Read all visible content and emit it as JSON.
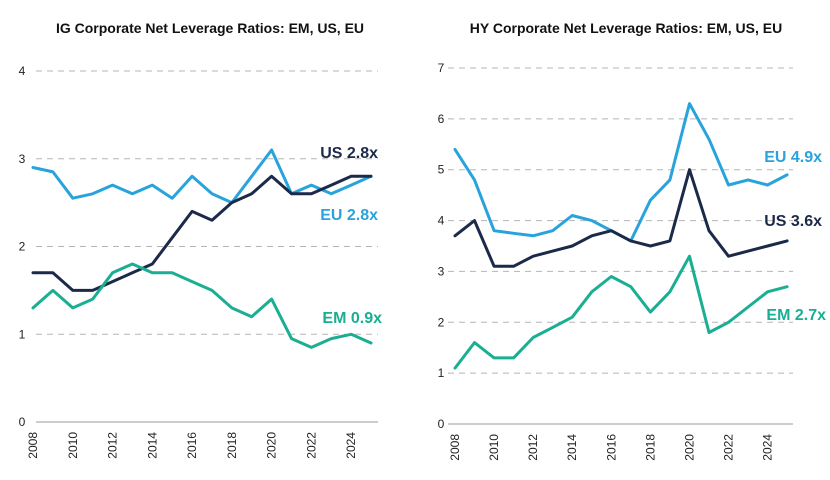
{
  "chart_data": [
    {
      "type": "line",
      "title": "IG Corporate Net Leverage Ratios: EM, US, EU",
      "xlabel": "",
      "ylabel": "",
      "ylim": [
        0,
        4
      ],
      "yticks": [
        0,
        1,
        2,
        3,
        4
      ],
      "xticks": [
        2008,
        2010,
        2012,
        2014,
        2016,
        2018,
        2020,
        2022,
        2024
      ],
      "xlim": [
        2008,
        2025.3
      ],
      "grid": true,
      "series": [
        {
          "name": "EU",
          "label": "EU 2.8x",
          "color": "#29a3dc",
          "x": [
            2008,
            2009,
            2010,
            2011,
            2012,
            2013,
            2014,
            2015,
            2016,
            2017,
            2018,
            2019,
            2020,
            2021,
            2022,
            2023,
            2024,
            2025
          ],
          "values": [
            2.9,
            2.85,
            2.55,
            2.6,
            2.7,
            2.6,
            2.7,
            2.55,
            2.8,
            2.6,
            2.5,
            2.8,
            3.1,
            2.6,
            2.7,
            2.6,
            2.7,
            2.8
          ]
        },
        {
          "name": "US",
          "label": "US 2.8x",
          "color": "#1c2a4a",
          "x": [
            2008,
            2009,
            2010,
            2011,
            2012,
            2013,
            2014,
            2015,
            2016,
            2017,
            2018,
            2019,
            2020,
            2021,
            2022,
            2023,
            2024,
            2025
          ],
          "values": [
            1.7,
            1.7,
            1.5,
            1.5,
            1.6,
            1.7,
            1.8,
            2.1,
            2.4,
            2.3,
            2.5,
            2.6,
            2.8,
            2.6,
            2.6,
            2.7,
            2.8,
            2.8
          ]
        },
        {
          "name": "EM",
          "label": "EM 0.9x",
          "color": "#1aae92",
          "x": [
            2008,
            2009,
            2010,
            2011,
            2012,
            2013,
            2014,
            2015,
            2016,
            2017,
            2018,
            2019,
            2020,
            2021,
            2022,
            2023,
            2024,
            2025
          ],
          "values": [
            1.3,
            1.5,
            1.3,
            1.4,
            1.7,
            1.8,
            1.7,
            1.7,
            1.6,
            1.5,
            1.3,
            1.2,
            1.4,
            0.95,
            0.85,
            0.95,
            1.0,
            0.9
          ]
        }
      ]
    },
    {
      "type": "line",
      "title": "HY Corporate Net Leverage Ratios: EM, US, EU",
      "xlabel": "",
      "ylabel": "",
      "ylim": [
        0,
        7
      ],
      "yticks": [
        0,
        1,
        2,
        3,
        4,
        5,
        6,
        7
      ],
      "xticks": [
        2008,
        2010,
        2012,
        2014,
        2016,
        2018,
        2020,
        2022,
        2024
      ],
      "xlim": [
        2008,
        2025.3
      ],
      "grid": true,
      "series": [
        {
          "name": "EU",
          "label": "EU 4.9x",
          "color": "#29a3dc",
          "x": [
            2008,
            2009,
            2010,
            2011,
            2012,
            2013,
            2014,
            2015,
            2016,
            2017,
            2018,
            2019,
            2020,
            2021,
            2022,
            2023,
            2024,
            2025
          ],
          "values": [
            5.4,
            4.8,
            3.8,
            3.75,
            3.7,
            3.8,
            4.1,
            4.0,
            3.8,
            3.6,
            4.4,
            4.8,
            6.3,
            5.6,
            4.7,
            4.8,
            4.7,
            4.9
          ]
        },
        {
          "name": "US",
          "label": "US 3.6x",
          "color": "#1c2a4a",
          "x": [
            2008,
            2009,
            2010,
            2011,
            2012,
            2013,
            2014,
            2015,
            2016,
            2017,
            2018,
            2019,
            2020,
            2021,
            2022,
            2023,
            2024,
            2025
          ],
          "values": [
            3.7,
            4.0,
            3.1,
            3.1,
            3.3,
            3.4,
            3.5,
            3.7,
            3.8,
            3.6,
            3.5,
            3.6,
            5.0,
            3.8,
            3.3,
            3.4,
            3.5,
            3.6
          ]
        },
        {
          "name": "EM",
          "label": "EM 2.7x",
          "color": "#1aae92",
          "x": [
            2008,
            2009,
            2010,
            2011,
            2012,
            2013,
            2014,
            2015,
            2016,
            2017,
            2018,
            2019,
            2020,
            2021,
            2022,
            2023,
            2024,
            2025
          ],
          "values": [
            1.1,
            1.6,
            1.3,
            1.3,
            1.7,
            1.9,
            2.1,
            2.6,
            2.9,
            2.7,
            2.2,
            2.6,
            3.3,
            1.8,
            2.0,
            2.3,
            2.6,
            2.7
          ]
        }
      ]
    }
  ]
}
